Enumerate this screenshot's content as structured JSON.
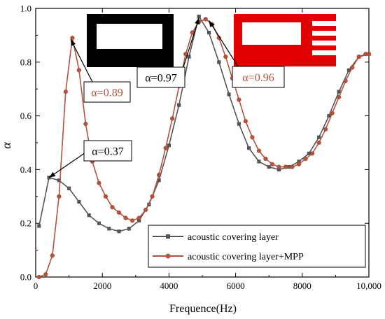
{
  "chart_data": {
    "type": "line",
    "xlabel": "Frequence(Hz)",
    "ylabel": "α",
    "xlim": [
      0,
      10000
    ],
    "ylim": [
      0,
      1.0
    ],
    "xticks": [
      0,
      2000,
      4000,
      6000,
      8000,
      10000
    ],
    "xtick_labels": [
      "0",
      "2000",
      "4000",
      "6000",
      "8000",
      "10,000"
    ],
    "yticks": [
      0,
      0.2,
      0.4,
      0.6,
      0.8,
      1.0
    ],
    "ytick_labels": [
      "0.0",
      "0.2",
      "0.4",
      "0.6",
      "0.8",
      "1.0"
    ],
    "grid": false,
    "legend_position": "bottom-right",
    "series": [
      {
        "name": "acoustic covering layer",
        "color": "#555555",
        "marker": "square",
        "x": [
          100,
          400,
          700,
          1000,
          1300,
          1600,
          1900,
          2200,
          2500,
          2800,
          3100,
          3400,
          3700,
          4000,
          4300,
          4600,
          4900,
          5200,
          5500,
          5800,
          6100,
          6400,
          6700,
          7000,
          7300,
          7600,
          7900,
          8200,
          8500,
          8800,
          9100,
          9400,
          9700,
          10000
        ],
        "y": [
          0.19,
          0.37,
          0.36,
          0.33,
          0.28,
          0.23,
          0.2,
          0.18,
          0.17,
          0.18,
          0.21,
          0.27,
          0.36,
          0.49,
          0.64,
          0.82,
          0.97,
          0.91,
          0.8,
          0.68,
          0.57,
          0.48,
          0.43,
          0.41,
          0.4,
          0.41,
          0.43,
          0.46,
          0.52,
          0.6,
          0.69,
          0.77,
          0.82,
          0.83
        ]
      },
      {
        "name": "acoustic covering layer+MPP",
        "color": "#b5523b",
        "marker": "circle",
        "x": [
          100,
          300,
          500,
          700,
          900,
          1100,
          1300,
          1500,
          1700,
          1900,
          2100,
          2300,
          2500,
          2700,
          2900,
          3100,
          3300,
          3500,
          3700,
          3900,
          4100,
          4300,
          4500,
          4700,
          4900,
          5100,
          5300,
          5500,
          5700,
          5900,
          6100,
          6300,
          6500,
          6700,
          6900,
          7100,
          7300,
          7500,
          7700,
          7900,
          8100,
          8300,
          8500,
          8700,
          8900,
          9100,
          9300,
          9500,
          9700,
          9900,
          10000
        ],
        "y": [
          0.0,
          0.01,
          0.08,
          0.3,
          0.69,
          0.89,
          0.77,
          0.57,
          0.43,
          0.35,
          0.3,
          0.26,
          0.24,
          0.22,
          0.21,
          0.22,
          0.25,
          0.3,
          0.38,
          0.48,
          0.59,
          0.71,
          0.83,
          0.91,
          0.95,
          0.96,
          0.94,
          0.89,
          0.82,
          0.74,
          0.66,
          0.58,
          0.52,
          0.47,
          0.44,
          0.42,
          0.41,
          0.41,
          0.41,
          0.42,
          0.44,
          0.46,
          0.5,
          0.55,
          0.61,
          0.67,
          0.73,
          0.78,
          0.82,
          0.83,
          0.83
        ]
      }
    ],
    "annotations": [
      {
        "text": "α=0.89",
        "point": [
          1050,
          0.89
        ],
        "color": "#b5523b"
      },
      {
        "text": "α=0.37",
        "point": [
          400,
          0.37
        ],
        "color": "#000000"
      },
      {
        "text": "α=0.97",
        "point": [
          4900,
          0.97
        ],
        "color": "#000000"
      },
      {
        "text": "α=0.96",
        "point": [
          5200,
          0.96
        ],
        "color": "#b5523b"
      }
    ],
    "insets": [
      {
        "name": "acoustic-covering-layer-cross-section",
        "color": "#000000"
      },
      {
        "name": "acoustic-covering-layer-mpp-cross-section",
        "color": "#e00000"
      }
    ]
  }
}
